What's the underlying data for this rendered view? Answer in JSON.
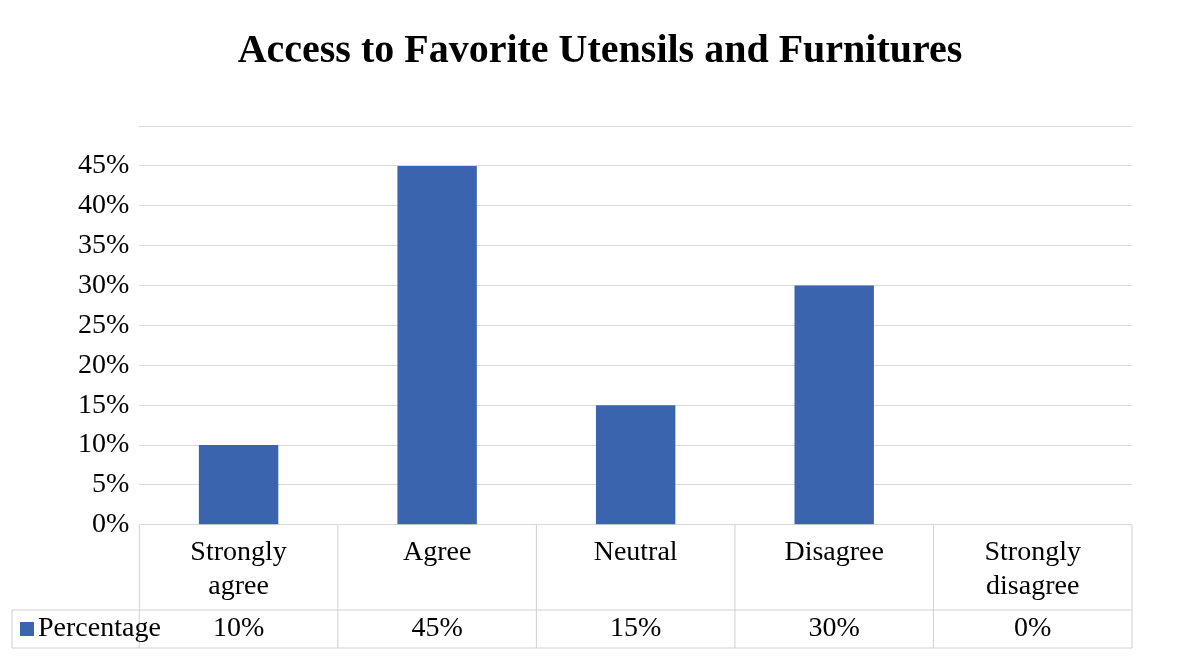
{
  "chart_data": {
    "type": "bar",
    "title": "Access to Favorite Utensils and Furnitures",
    "categories": [
      "Strongly agree",
      "Agree",
      "Neutral",
      "Disagree",
      "Strongly disagree"
    ],
    "series": [
      {
        "name": "Percentage",
        "color": "#3a64ad",
        "values": [
          10,
          45,
          15,
          30,
          0
        ]
      }
    ],
    "value_labels": [
      "10%",
      "45%",
      "15%",
      "30%",
      "0%"
    ],
    "ylim": [
      0,
      50
    ],
    "yticks": [
      {
        "value": 0,
        "label": "0%"
      },
      {
        "value": 5,
        "label": "5%"
      },
      {
        "value": 10,
        "label": "10%"
      },
      {
        "value": 15,
        "label": "15%"
      },
      {
        "value": 20,
        "label": "20%"
      },
      {
        "value": 25,
        "label": "25%"
      },
      {
        "value": 30,
        "label": "30%"
      },
      {
        "value": 35,
        "label": "35%"
      },
      {
        "value": 40,
        "label": "40%"
      },
      {
        "value": 45,
        "label": "45%"
      },
      {
        "value": 50,
        "label": null
      }
    ],
    "grid": true,
    "legend": "bottom"
  }
}
